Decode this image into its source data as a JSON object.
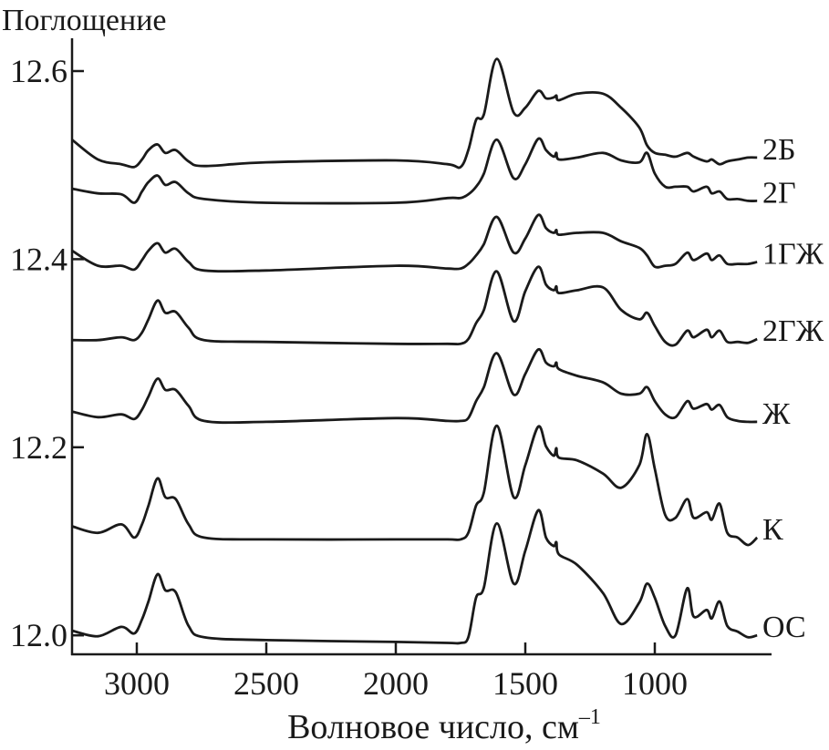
{
  "chart_data": {
    "type": "line",
    "title": "",
    "ylabel": "Поглощение",
    "xlabel": "Волновое число, см",
    "xlabel_superscript": "–1",
    "xlim": [
      3250,
      600
    ],
    "ylim": [
      11.983,
      12.636
    ],
    "x_ticks": [
      3000,
      2500,
      2000,
      1500,
      1000
    ],
    "x_tick_labels": [
      "3000",
      "2500",
      "2000",
      "1500",
      "1000"
    ],
    "y_ticks": [
      12.0,
      12.2,
      12.4,
      12.6
    ],
    "y_tick_labels": [
      "12.0",
      "12.2",
      "12.4",
      "12.6"
    ],
    "grid": false,
    "legend": "inline labels at right end of each curve",
    "colors": {
      "line": "#1a1a1a",
      "axis": "#1a1a1a"
    },
    "x": [
      3250,
      3150,
      3060,
      3010,
      2980,
      2955,
      2920,
      2890,
      2850,
      2800,
      2740,
      2500,
      2000,
      1800,
      1750,
      1720,
      1690,
      1660,
      1610,
      1545,
      1500,
      1450,
      1420,
      1390,
      1380,
      1370,
      1300,
      1200,
      1130,
      1060,
      1030,
      1000,
      960,
      920,
      875,
      850,
      800,
      780,
      750,
      720,
      680,
      640,
      605
    ],
    "series": [
      {
        "name": "2Б",
        "values": [
          12.527,
          12.506,
          12.501,
          12.498,
          12.506,
          12.516,
          12.522,
          12.513,
          12.516,
          12.504,
          12.499,
          12.503,
          12.505,
          12.501,
          12.498,
          12.516,
          12.548,
          12.554,
          12.613,
          12.556,
          12.561,
          12.579,
          12.571,
          12.572,
          12.574,
          12.569,
          12.576,
          12.576,
          12.561,
          12.54,
          12.521,
          12.513,
          12.511,
          12.509,
          12.513,
          12.509,
          12.504,
          12.506,
          12.501,
          12.504,
          12.506,
          12.508,
          12.508
        ]
      },
      {
        "name": "2Г",
        "values": [
          12.475,
          12.47,
          12.469,
          12.46,
          12.472,
          12.482,
          12.489,
          12.479,
          12.482,
          12.47,
          12.464,
          12.46,
          12.46,
          12.465,
          12.465,
          12.469,
          12.477,
          12.491,
          12.527,
          12.486,
          12.501,
          12.528,
          12.516,
          12.509,
          12.513,
          12.506,
          12.508,
          12.513,
          12.505,
          12.503,
          12.513,
          12.491,
          12.477,
          12.477,
          12.477,
          12.472,
          12.477,
          12.47,
          12.472,
          12.464,
          12.464,
          12.462,
          12.462
        ]
      },
      {
        "name": "1ГЖ",
        "values": [
          12.409,
          12.393,
          12.393,
          12.389,
          12.399,
          12.409,
          12.417,
          12.407,
          12.411,
          12.397,
          12.388,
          12.388,
          12.393,
          12.39,
          12.39,
          12.395,
          12.404,
          12.416,
          12.445,
          12.407,
          12.422,
          12.447,
          12.433,
          12.428,
          12.431,
          12.426,
          12.428,
          12.428,
          12.419,
          12.412,
          12.404,
          12.392,
          12.393,
          12.395,
          12.407,
          12.399,
          12.406,
          12.399,
          12.404,
          12.395,
          12.395,
          12.395,
          12.397
        ]
      },
      {
        "name": "2ГЖ",
        "values": [
          12.314,
          12.314,
          12.317,
          12.314,
          12.322,
          12.336,
          12.356,
          12.343,
          12.344,
          12.327,
          12.314,
          12.312,
          12.31,
          12.31,
          12.31,
          12.315,
          12.332,
          12.346,
          12.387,
          12.334,
          12.366,
          12.392,
          12.373,
          12.367,
          12.371,
          12.364,
          12.367,
          12.37,
          12.346,
          12.336,
          12.343,
          12.329,
          12.312,
          12.309,
          12.324,
          12.317,
          12.325,
          12.317,
          12.324,
          12.312,
          12.312,
          12.311,
          12.315
        ]
      },
      {
        "name": "Ж",
        "values": [
          12.238,
          12.232,
          12.235,
          12.23,
          12.24,
          12.254,
          12.273,
          12.261,
          12.261,
          12.244,
          12.228,
          12.227,
          12.231,
          12.228,
          12.228,
          12.231,
          12.249,
          12.264,
          12.3,
          12.256,
          12.278,
          12.304,
          12.29,
          12.286,
          12.29,
          12.283,
          12.276,
          12.269,
          12.257,
          12.257,
          12.264,
          12.249,
          12.235,
          12.232,
          12.249,
          12.241,
          12.246,
          12.24,
          12.245,
          12.232,
          12.228,
          12.227,
          12.227
        ]
      },
      {
        "name": "К",
        "values": [
          12.116,
          12.109,
          12.118,
          12.104,
          12.118,
          12.138,
          12.167,
          12.147,
          12.145,
          12.118,
          12.104,
          12.102,
          12.102,
          12.102,
          12.102,
          12.109,
          12.138,
          12.152,
          12.223,
          12.147,
          12.181,
          12.222,
          12.201,
          12.191,
          12.199,
          12.189,
          12.186,
          12.172,
          12.157,
          12.181,
          12.214,
          12.177,
          12.128,
          12.125,
          12.145,
          12.125,
          12.131,
          12.123,
          12.14,
          12.109,
          12.104,
          12.096,
          12.104
        ]
      },
      {
        "name": "ОС",
        "values": [
          12.005,
          11.999,
          12.009,
          12.002,
          12.017,
          12.036,
          12.065,
          12.048,
          12.046,
          12.01,
          11.998,
          11.995,
          11.993,
          11.992,
          11.992,
          11.998,
          12.04,
          12.051,
          12.119,
          12.055,
          12.09,
          12.133,
          12.104,
          12.095,
          12.099,
          12.086,
          12.075,
          12.045,
          12.012,
          12.035,
          12.055,
          12.04,
          12.01,
          12.0,
          12.05,
          12.02,
          12.027,
          12.018,
          12.036,
          12.01,
          12.004,
          11.998,
          12.0
        ]
      }
    ]
  }
}
